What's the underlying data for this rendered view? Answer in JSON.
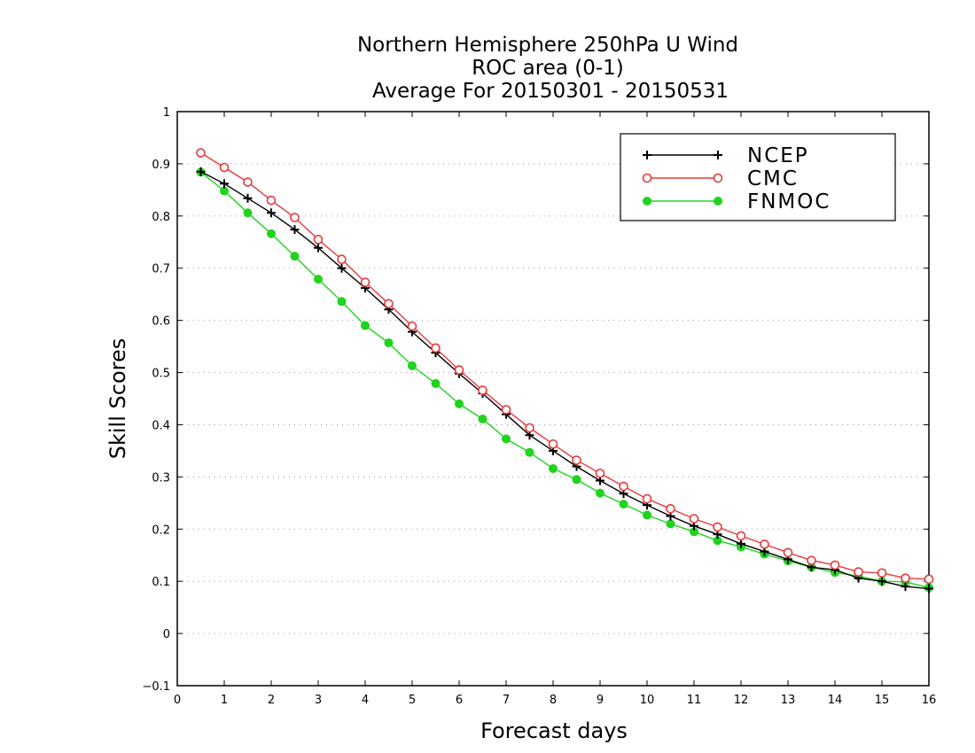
{
  "chart_data": {
    "type": "line",
    "title_lines": [
      "Northern Hemisphere 250hPa U Wind",
      "ROC area (0-1)",
      "Average For 20150301 - 20150531"
    ],
    "xlabel": "Forecast days",
    "ylabel": "Skill Scores",
    "xlim": [
      0,
      16
    ],
    "ylim": [
      -0.1,
      1
    ],
    "x_ticks": [
      0,
      1,
      2,
      3,
      4,
      5,
      6,
      7,
      8,
      9,
      10,
      11,
      12,
      13,
      14,
      15,
      16
    ],
    "y_ticks": [
      -0.1,
      0,
      0.1,
      0.2,
      0.3,
      0.4,
      0.5,
      0.6,
      0.7,
      0.8,
      0.9,
      1
    ],
    "y_tick_labels": [
      "−0.1",
      "0",
      "0.1",
      "0.2",
      "0.3",
      "0.4",
      "0.5",
      "0.6",
      "0.7",
      "0.8",
      "0.9",
      "1"
    ],
    "grid": "horizontal dotted",
    "legend_position": "top-right",
    "x": [
      0.5,
      1,
      1.5,
      2,
      2.5,
      3,
      3.5,
      4,
      4.5,
      5,
      5.5,
      6,
      6.5,
      7,
      7.5,
      8,
      8.5,
      9,
      9.5,
      10,
      10.5,
      11,
      11.5,
      12,
      12.5,
      13,
      13.5,
      14,
      14.5,
      15,
      15.5,
      16
    ],
    "series": [
      {
        "name": "NCEP",
        "color": "#000000",
        "marker": "plus",
        "values": [
          0.885,
          0.862,
          0.834,
          0.806,
          0.774,
          0.739,
          0.7,
          0.662,
          0.621,
          0.578,
          0.538,
          0.498,
          0.46,
          0.42,
          0.38,
          0.35,
          0.32,
          0.293,
          0.268,
          0.246,
          0.225,
          0.206,
          0.19,
          0.172,
          0.157,
          0.142,
          0.127,
          0.122,
          0.106,
          0.1,
          0.09,
          0.086
        ]
      },
      {
        "name": "CMC",
        "color": "#e8393c",
        "marker": "open-circle",
        "values": [
          0.921,
          0.893,
          0.865,
          0.83,
          0.797,
          0.755,
          0.717,
          0.673,
          0.632,
          0.589,
          0.547,
          0.505,
          0.466,
          0.429,
          0.394,
          0.363,
          0.332,
          0.307,
          0.282,
          0.258,
          0.239,
          0.22,
          0.204,
          0.187,
          0.171,
          0.155,
          0.14,
          0.131,
          0.118,
          0.116,
          0.106,
          0.104
        ]
      },
      {
        "name": "FNMOC",
        "color": "#1fd31f",
        "marker": "filled-circle",
        "values": [
          0.884,
          0.848,
          0.806,
          0.766,
          0.723,
          0.679,
          0.636,
          0.59,
          0.557,
          0.513,
          0.479,
          0.44,
          0.411,
          0.373,
          0.347,
          0.316,
          0.295,
          0.269,
          0.248,
          0.227,
          0.21,
          0.195,
          0.178,
          0.166,
          0.152,
          0.139,
          0.127,
          0.117,
          0.11,
          0.1,
          0.099,
          0.088
        ]
      }
    ]
  }
}
